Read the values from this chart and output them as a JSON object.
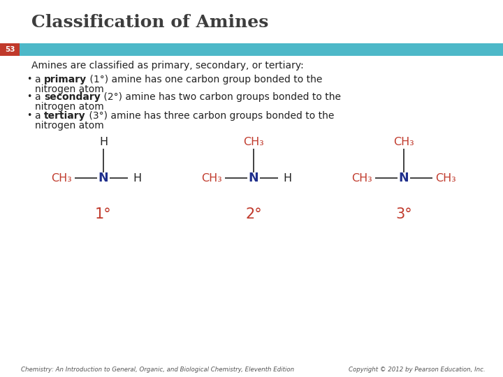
{
  "title": "Classification of Amines",
  "title_color": "#3d3d3d",
  "title_fontsize": 18,
  "slide_number": "53",
  "slide_number_color": "#ffffff",
  "teal_bar_color": "#4db8c8",
  "red_bar_color": "#c0392b",
  "background_color": "#ffffff",
  "body_text_color": "#222222",
  "red_text_color": "#c0392b",
  "blue_text_color": "#1a237e",
  "intro_text": "Amines are classified as primary, secondary, or tertiary:",
  "footer_left": "Chemistry: An Introduction to General, Organic, and Biological Chemistry, Eleventh Edition",
  "footer_right": "Copyright © 2012 by Pearson Education, Inc.",
  "structures": [
    {
      "label": "1°",
      "top_atom": "H",
      "top_color": "#222222",
      "left": "CH₃",
      "right": "H",
      "left_color": "#c0392b",
      "right_color": "#222222",
      "n_color": "#1f2f8c"
    },
    {
      "label": "2°",
      "top_atom": "CH₃",
      "top_color": "#c0392b",
      "left": "CH₃",
      "right": "H",
      "left_color": "#c0392b",
      "right_color": "#222222",
      "n_color": "#1f2f8c"
    },
    {
      "label": "3°",
      "top_atom": "CH₃",
      "top_color": "#c0392b",
      "left": "CH₃",
      "right": "CH₃",
      "left_color": "#c0392b",
      "right_color": "#c0392b",
      "n_color": "#1f2f8c"
    }
  ]
}
